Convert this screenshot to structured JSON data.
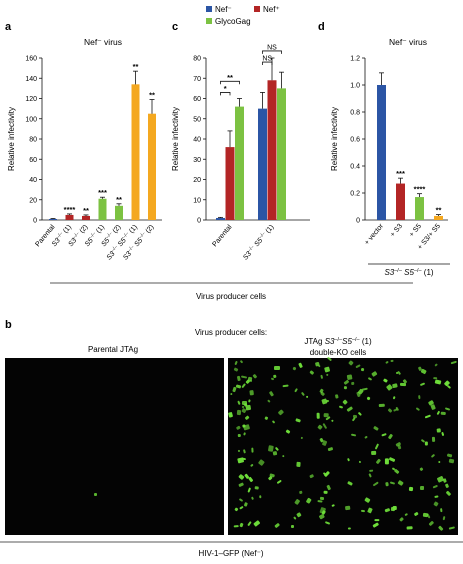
{
  "chart_data": [
    {
      "panel": "a",
      "type": "bar",
      "title": "Nef⁻ virus",
      "ylabel": "Relative infectivity",
      "ylim": [
        0,
        160
      ],
      "yticks": [
        "0",
        "20",
        "40",
        "60",
        "80",
        "100",
        "120",
        "140",
        "160"
      ],
      "categories": [
        {
          "pre": "Parental",
          "sup": "",
          "post": ""
        },
        {
          "pre": "S3",
          "sup": "–/–",
          "post": " (1)"
        },
        {
          "pre": "S3",
          "sup": "–/–",
          "post": " (2)"
        },
        {
          "pre": "S5",
          "sup": "–/–",
          "post": " (1)"
        },
        {
          "pre": "S5",
          "sup": "–/–",
          "post": " (2)"
        },
        {
          "pre": "S3",
          "sup": "–/–",
          "post": " S5",
          "sup2": "–/–",
          "post2": " (1)"
        },
        {
          "pre": "S3",
          "sup": "–/–",
          "post": " S5",
          "sup2": "–/–",
          "post2": " (2)"
        }
      ],
      "values": [
        1,
        5,
        4,
        21,
        14,
        134,
        105
      ],
      "errors": [
        0.5,
        1,
        1,
        1.5,
        2,
        13,
        14
      ],
      "colors": [
        "#2b55a5",
        "#b32525",
        "#b32525",
        "#7cc242",
        "#7cc242",
        "#f4a820",
        "#f4a820"
      ],
      "significance": [
        "",
        "****",
        "**",
        "***",
        "**",
        "**",
        "**"
      ]
    },
    {
      "panel": "c",
      "type": "bar",
      "ylabel": "Relative infectivity",
      "ylim": [
        0,
        80
      ],
      "yticks": [
        "0",
        "10",
        "20",
        "30",
        "40",
        "50",
        "60",
        "70",
        "80"
      ],
      "categories": [
        {
          "pre": "Parental",
          "sup": "",
          "post": ""
        },
        {
          "pre": "S3",
          "sup": "–/–",
          "post": " S5",
          "sup2": "–/–",
          "post2": " (1)"
        }
      ],
      "series": [
        {
          "name": "Nef⁻",
          "color": "#2b55a5",
          "values": [
            1,
            55
          ],
          "errors": [
            0.3,
            8
          ]
        },
        {
          "name": "Nef⁺",
          "color": "#b32525",
          "values": [
            36,
            69
          ],
          "errors": [
            8,
            11
          ]
        },
        {
          "name": "GlycoGag",
          "color": "#7cc242",
          "values": [
            56,
            65
          ],
          "errors": [
            4,
            8
          ]
        }
      ],
      "brackets": [
        {
          "label": "*",
          "group": 0,
          "from": 0,
          "to": 1,
          "y": 63
        },
        {
          "label": "**",
          "group": 0,
          "from": 0,
          "to": 2,
          "y": 68.5
        },
        {
          "label": "NS",
          "group": 1,
          "from": 0,
          "to": 1,
          "y": 78
        },
        {
          "label": "NS",
          "group": 1,
          "from": 0,
          "to": 2,
          "y": 83.5
        }
      ],
      "legend_position": "top"
    },
    {
      "panel": "d",
      "type": "bar",
      "title": "Nef⁻ virus",
      "ylabel": "Relative infectivity",
      "ylim": [
        0,
        1.2
      ],
      "yticks": [
        "0",
        "0.2",
        "0.4",
        "0.6",
        "0.8",
        "1.0",
        "1.2"
      ],
      "categories": [
        "+ vector",
        "+ S3",
        "+ S5",
        "+ S3/+ S5"
      ],
      "values": [
        1.0,
        0.27,
        0.17,
        0.03
      ],
      "errors": [
        0.09,
        0.04,
        0.025,
        0.01
      ],
      "colors": [
        "#2b55a5",
        "#b32525",
        "#7cc242",
        "#f4a820"
      ],
      "significance": [
        "",
        "***",
        "****",
        "**"
      ],
      "group_label": {
        "pre": "S3",
        "sup": "–/–",
        "mid": " S5",
        "sup2": "–/–",
        "post": " (1)"
      }
    }
  ],
  "labels": {
    "panel_a": "a",
    "panel_c": "c",
    "panel_d": "d",
    "panel_b": "b",
    "virus_producer_cells": "Virus producer cells",
    "b_header": "Virus producer cells:",
    "b_left_title": "Parental JTAg",
    "b_right_line1_pre": "JTAg ",
    "b_right_line1_s3": "S3",
    "b_right_line1_s5": "S5",
    "b_right_line1_post": " (1)",
    "b_right_line1_sup": "–/–",
    "b_right_line2": "double-KO cells",
    "b_footer": "HIV-1–GFP (Nef⁻)"
  },
  "micrograph_colors": {
    "background": "#040404",
    "gfp": "#6fe03a"
  }
}
